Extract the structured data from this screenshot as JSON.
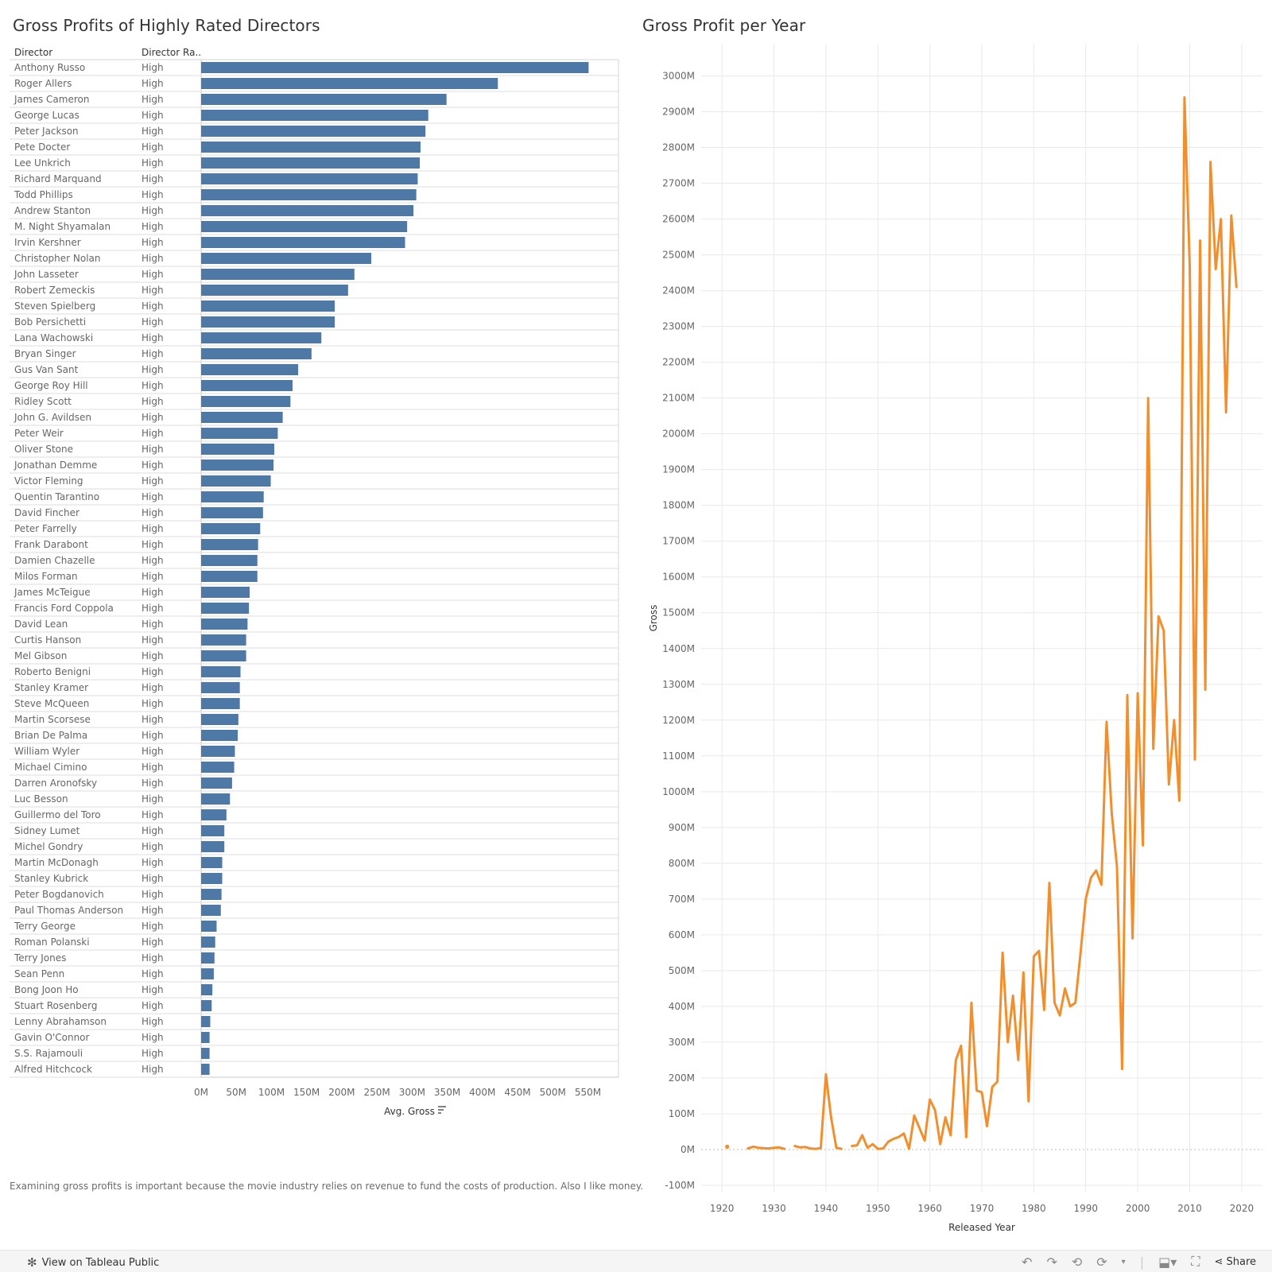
{
  "left_chart": {
    "title": "Gross Profits of Highly Rated Directors",
    "col_director": "Director",
    "col_rating": "Director Ra..",
    "axis_title": "Avg. Gross",
    "sort_icon": "sort-descending-icon"
  },
  "right_chart": {
    "title": "Gross Profit per Year"
  },
  "note": "Examining gross profits is important because the movie industry relies on revenue to fund the costs of production. Also I like money.",
  "footer": {
    "view_label": "View on Tableau Public",
    "share_label": "Share",
    "icons": [
      "undo-icon",
      "redo-icon",
      "revert-icon",
      "refresh-icon",
      "download-icon",
      "fullscreen-icon",
      "share-icon"
    ]
  },
  "colors": {
    "bar": "#4e79a7",
    "line": "#f28e2b",
    "grid": "#e9e9e9"
  },
  "chart_data": [
    {
      "type": "bar",
      "orientation": "horizontal",
      "title": "Gross Profits of Highly Rated Directors",
      "xlabel": "Avg. Gross",
      "xlim": [
        0,
        580
      ],
      "unit": "M",
      "ticks": [
        "0M",
        "50M",
        "100M",
        "150M",
        "200M",
        "250M",
        "300M",
        "350M",
        "400M",
        "450M",
        "500M",
        "550M"
      ],
      "categories": [
        "Anthony Russo",
        "Roger Allers",
        "James Cameron",
        "George Lucas",
        "Peter Jackson",
        "Pete Docter",
        "Lee Unkrich",
        "Richard Marquand",
        "Todd Phillips",
        "Andrew Stanton",
        "M. Night Shyamalan",
        "Irvin Kershner",
        "Christopher Nolan",
        "John Lasseter",
        "Robert Zemeckis",
        "Steven Spielberg",
        "Bob Persichetti",
        "Lana Wachowski",
        "Bryan Singer",
        "Gus Van Sant",
        "George Roy Hill",
        "Ridley Scott",
        "John G. Avildsen",
        "Peter Weir",
        "Oliver Stone",
        "Jonathan Demme",
        "Victor Fleming",
        "Quentin Tarantino",
        "David Fincher",
        "Peter Farrelly",
        "Frank Darabont",
        "Damien Chazelle",
        "Milos Forman",
        "James McTeigue",
        "Francis Ford Coppola",
        "David Lean",
        "Curtis Hanson",
        "Mel Gibson",
        "Roberto Benigni",
        "Stanley Kramer",
        "Steve McQueen",
        "Martin Scorsese",
        "Brian De Palma",
        "William Wyler",
        "Michael Cimino",
        "Darren Aronofsky",
        "Luc Besson",
        "Guillermo del Toro",
        "Sidney Lumet",
        "Michel Gondry",
        "Martin McDonagh",
        "Stanley Kubrick",
        "Peter Bogdanovich",
        "Paul Thomas Anderson",
        "Terry George",
        "Roman Polanski",
        "Terry Jones",
        "Sean Penn",
        "Bong Joon Ho",
        "Stuart Rosenberg",
        "Lenny Abrahamson",
        "Gavin O'Connor",
        "S.S. Rajamouli",
        "Alfred Hitchcock"
      ],
      "rating": [
        "High",
        "High",
        "High",
        "High",
        "High",
        "High",
        "High",
        "High",
        "High",
        "High",
        "High",
        "High",
        "High",
        "High",
        "High",
        "High",
        "High",
        "High",
        "High",
        "High",
        "High",
        "High",
        "High",
        "High",
        "High",
        "High",
        "High",
        "High",
        "High",
        "High",
        "High",
        "High",
        "High",
        "High",
        "High",
        "High",
        "High",
        "High",
        "High",
        "High",
        "High",
        "High",
        "High",
        "High",
        "High",
        "High",
        "High",
        "High",
        "High",
        "High",
        "High",
        "High",
        "High",
        "High",
        "High",
        "High",
        "High",
        "High",
        "High",
        "High",
        "High",
        "High",
        "High",
        "High"
      ],
      "values": [
        551,
        422,
        349,
        323,
        319,
        312,
        311,
        308,
        306,
        302,
        293,
        290,
        242,
        218,
        209,
        190,
        190,
        171,
        157,
        138,
        130,
        127,
        116,
        109,
        104,
        103,
        99,
        89,
        88,
        84,
        81,
        80,
        80,
        69,
        68,
        66,
        64,
        64,
        56,
        55,
        55,
        53,
        52,
        48,
        47,
        44,
        41,
        36,
        33,
        33,
        30,
        30,
        29,
        28,
        22,
        20,
        19,
        18,
        16,
        15,
        13,
        12,
        12,
        12
      ]
    },
    {
      "type": "line",
      "title": "Gross Profit per Year",
      "xlabel": "Released Year",
      "ylabel": "Gross",
      "unit": "M",
      "xlim": [
        1916,
        2024
      ],
      "ylim": [
        -120,
        3090
      ],
      "xticks": [
        1920,
        1930,
        1940,
        1950,
        1960,
        1970,
        1980,
        1990,
        2000,
        2010,
        2020
      ],
      "yticks": [
        "-100M",
        "0M",
        "100M",
        "200M",
        "300M",
        "400M",
        "500M",
        "600M",
        "700M",
        "800M",
        "900M",
        "1000M",
        "1100M",
        "1200M",
        "1300M",
        "1400M",
        "1500M",
        "1600M",
        "1700M",
        "1800M",
        "1900M",
        "2000M",
        "2100M",
        "2200M",
        "2300M",
        "2400M",
        "2500M",
        "2600M",
        "2700M",
        "2800M",
        "2900M",
        "3000M"
      ],
      "yticks_values": [
        -100,
        0,
        100,
        200,
        300,
        400,
        500,
        600,
        700,
        800,
        900,
        1000,
        1100,
        1200,
        1300,
        1400,
        1500,
        1600,
        1700,
        1800,
        1900,
        2000,
        2100,
        2200,
        2300,
        2400,
        2500,
        2600,
        2700,
        2800,
        2900,
        3000
      ],
      "point": [
        {
          "x": 1921,
          "y": 8
        }
      ],
      "segments": [
        [
          [
            1925,
            3
          ],
          [
            1926,
            8
          ],
          [
            1927,
            5
          ],
          [
            1928,
            4
          ],
          [
            1929,
            3
          ],
          [
            1930,
            5
          ],
          [
            1931,
            6
          ],
          [
            1932,
            2
          ]
        ],
        [
          [
            1934,
            10
          ],
          [
            1935,
            6
          ],
          [
            1936,
            7
          ],
          [
            1937,
            3
          ],
          [
            1938,
            2
          ],
          [
            1939,
            4
          ],
          [
            1940,
            210
          ],
          [
            1941,
            90
          ],
          [
            1942,
            5
          ],
          [
            1943,
            2
          ]
        ],
        [
          [
            1945,
            10
          ],
          [
            1946,
            12
          ],
          [
            1947,
            40
          ],
          [
            1948,
            5
          ],
          [
            1949,
            15
          ],
          [
            1950,
            2
          ],
          [
            1951,
            3
          ],
          [
            1952,
            22
          ],
          [
            1953,
            30
          ],
          [
            1954,
            35
          ],
          [
            1955,
            45
          ],
          [
            1956,
            2
          ],
          [
            1957,
            95
          ],
          [
            1958,
            60
          ],
          [
            1959,
            25
          ],
          [
            1960,
            140
          ],
          [
            1961,
            110
          ],
          [
            1962,
            15
          ],
          [
            1963,
            90
          ],
          [
            1964,
            40
          ],
          [
            1965,
            250
          ],
          [
            1966,
            290
          ],
          [
            1967,
            35
          ],
          [
            1968,
            410
          ],
          [
            1969,
            165
          ],
          [
            1970,
            160
          ],
          [
            1971,
            65
          ],
          [
            1972,
            175
          ],
          [
            1973,
            190
          ],
          [
            1974,
            550
          ],
          [
            1975,
            300
          ],
          [
            1976,
            430
          ],
          [
            1977,
            250
          ],
          [
            1978,
            495
          ],
          [
            1979,
            135
          ],
          [
            1980,
            540
          ],
          [
            1981,
            555
          ],
          [
            1982,
            390
          ],
          [
            1983,
            745
          ],
          [
            1984,
            410
          ],
          [
            1985,
            375
          ],
          [
            1986,
            450
          ],
          [
            1987,
            400
          ],
          [
            1988,
            410
          ],
          [
            1989,
            550
          ],
          [
            1990,
            700
          ],
          [
            1991,
            760
          ],
          [
            1992,
            780
          ],
          [
            1993,
            740
          ],
          [
            1994,
            1195
          ],
          [
            1995,
            940
          ],
          [
            1996,
            790
          ],
          [
            1997,
            225
          ],
          [
            1998,
            1270
          ],
          [
            1999,
            590
          ],
          [
            2000,
            1275
          ],
          [
            2001,
            850
          ],
          [
            2002,
            2100
          ],
          [
            2003,
            1120
          ],
          [
            2004,
            1490
          ],
          [
            2005,
            1450
          ],
          [
            2006,
            1020
          ],
          [
            2007,
            1200
          ],
          [
            2008,
            975
          ],
          [
            2009,
            2940
          ],
          [
            2010,
            2470
          ],
          [
            2011,
            1090
          ],
          [
            2012,
            2540
          ],
          [
            2013,
            1285
          ],
          [
            2014,
            2760
          ],
          [
            2015,
            2460
          ],
          [
            2016,
            2600
          ],
          [
            2017,
            2060
          ],
          [
            2018,
            2610
          ],
          [
            2019,
            2410
          ]
        ]
      ]
    }
  ]
}
